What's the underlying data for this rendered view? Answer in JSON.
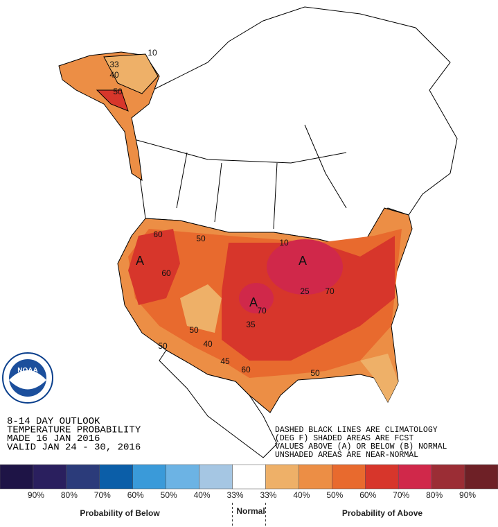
{
  "outlook": {
    "lines": [
      "8-14 DAY OUTLOOK",
      "TEMPERATURE PROBABILITY",
      "MADE  16 JAN 2016",
      "VALID  JAN 24 - 30, 2016"
    ]
  },
  "notes": {
    "lines": [
      "DASHED BLACK LINES ARE CLIMATOLOGY",
      "(DEG F) SHADED AREAS ARE FCST",
      "VALUES ABOVE (A) OR BELOW (B) NORMAL",
      "UNSHADED AREAS ARE NEAR-NORMAL"
    ]
  },
  "logo": "NOAA",
  "map_labels": [
    "33",
    "40",
    "50",
    "10",
    "60",
    "50",
    "A",
    "60",
    "50",
    "50",
    "40",
    "45",
    "60",
    "A",
    "70",
    "35",
    "10",
    "A",
    "70",
    "25",
    "50"
  ],
  "legend": {
    "colors": [
      "#1e1446",
      "#2a1f5e",
      "#2b3b7a",
      "#0b5ea8",
      "#3a9ad9",
      "#6cb3e4",
      "#a5c6e3",
      "#ffffff",
      "#eeb068",
      "#ec8e45",
      "#e86a2e",
      "#d7362b",
      "#d0284a",
      "#9b2d35",
      "#6e2026"
    ],
    "labels": [
      "90%",
      "80%",
      "70%",
      "60%",
      "50%",
      "40%",
      "33%",
      "33%",
      "40%",
      "50%",
      "60%",
      "70%",
      "80%",
      "90%"
    ],
    "below": "Probability of Below",
    "normal": "Normal",
    "above": "Probability of Above"
  }
}
